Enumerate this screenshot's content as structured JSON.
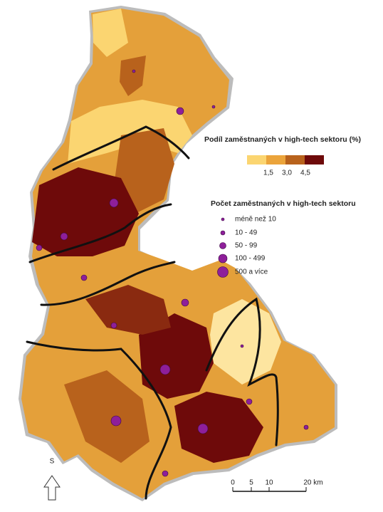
{
  "legend_share": {
    "title": "Podíl zaměstnaných v high-tech sektoru (%)",
    "labels": [
      "1,5",
      "3,0",
      "4,5"
    ]
  },
  "legend_count": {
    "title": "Počet zaměstnaných v high-tech sektoru",
    "items": [
      "méně než 10",
      "10 - 49",
      "50 - 99",
      "100 - 499",
      "500 a více"
    ]
  },
  "north_arrow": "S",
  "scale_bar": [
    "0",
    "5",
    "10",
    "20 km"
  ]
}
